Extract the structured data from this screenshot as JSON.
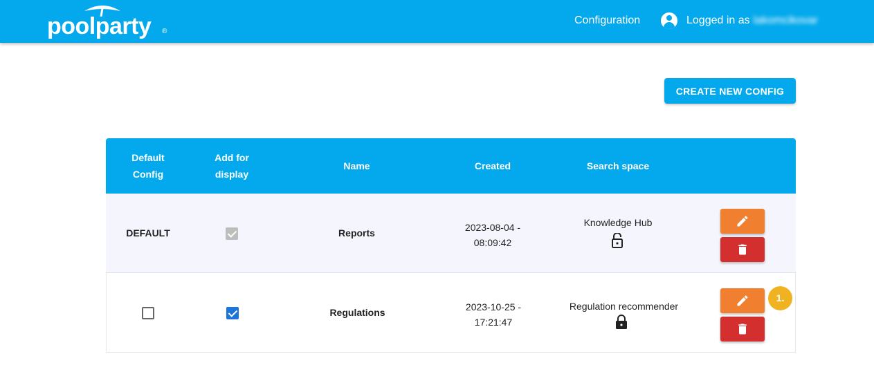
{
  "header": {
    "logo": "poolparty",
    "nav_config": "Configuration",
    "logged_in_label": "Logged in as",
    "username": "lakomcikovar"
  },
  "create_button": "CREATE NEW CONFIG",
  "table": {
    "headers": {
      "default": [
        "Default",
        "Config"
      ],
      "display": [
        "Add for",
        "display"
      ],
      "name": "Name",
      "created": "Created",
      "space": "Search space"
    },
    "rows": [
      {
        "default": "DEFAULT",
        "add_for_display": true,
        "display_disabled": true,
        "name": "Reports",
        "created": [
          "2023-08-04 -",
          "08:09:42"
        ],
        "space": "Knowledge Hub",
        "lock": "lock-open-icon"
      },
      {
        "default_checked": false,
        "add_for_display": true,
        "name": "Regulations",
        "created": [
          "2023-10-25 -",
          "17:21:47"
        ],
        "space": "Regulation recommender",
        "lock": "lock-closed-icon"
      }
    ]
  },
  "annotation_badge": "1.",
  "colors": {
    "brand": "#03a9ec",
    "edit": "#f07f30",
    "delete": "#d32f2f",
    "badge": "#efb322"
  }
}
